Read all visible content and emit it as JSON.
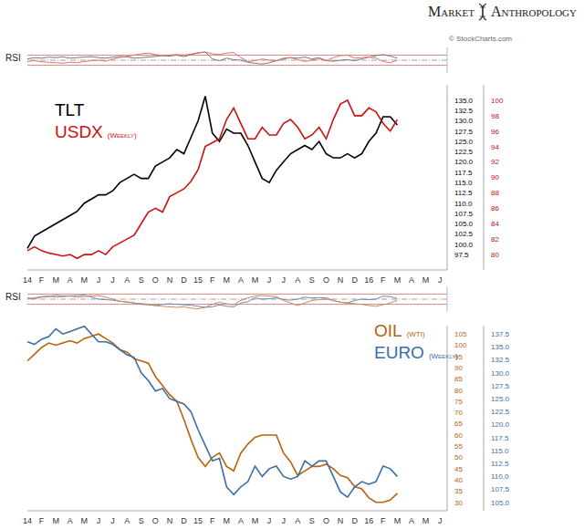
{
  "header": {
    "brand": [
      "Market",
      "Anthropology"
    ],
    "credit": "© StockCharts.com"
  },
  "chart_data": [
    {
      "type": "line",
      "title": "RSI",
      "tick_labels": false,
      "ylim": [
        0,
        100
      ],
      "levels": [
        30,
        50,
        70
      ],
      "series": [
        {
          "color": "#777777",
          "values": [
            55,
            60,
            58,
            62,
            60,
            63,
            58,
            60,
            62,
            64,
            60,
            58,
            62,
            65,
            63,
            58,
            60,
            62,
            65,
            68,
            66,
            70,
            64,
            72,
            78,
            82,
            55,
            48,
            58,
            52,
            50,
            42,
            38,
            35,
            40,
            48,
            55,
            60,
            58,
            62,
            55,
            60,
            48,
            46,
            50,
            52,
            48,
            55,
            62,
            68,
            72,
            66,
            58,
            null,
            null,
            null,
            null,
            null,
            null,
            null
          ]
        },
        {
          "color": "#e07070",
          "values": [
            45,
            48,
            44,
            42,
            40,
            38,
            42,
            40,
            45,
            48,
            50,
            46,
            55,
            60,
            65,
            70,
            75,
            78,
            72,
            68,
            70,
            72,
            70,
            74,
            80,
            82,
            75,
            72,
            78,
            80,
            60,
            45,
            48,
            55,
            50,
            48,
            58,
            60,
            52,
            45,
            50,
            55,
            48,
            60,
            68,
            70,
            58,
            60,
            62,
            58,
            45,
            40,
            50,
            null,
            null,
            null,
            null,
            null,
            null,
            null
          ]
        }
      ]
    },
    {
      "type": "line",
      "categories": [
        "14",
        null,
        "F",
        null,
        "M",
        null,
        "A",
        null,
        "M",
        null,
        "J",
        null,
        "J",
        null,
        "A",
        null,
        "S",
        null,
        "O",
        null,
        "N",
        null,
        "D",
        null,
        "15",
        null,
        "F",
        null,
        "M",
        null,
        "A",
        null,
        "M",
        null,
        "J",
        null,
        "J",
        null,
        "A",
        null,
        "S",
        null,
        "O",
        null,
        "N",
        null,
        "D",
        null,
        "16",
        null,
        "F",
        null,
        "M",
        null,
        "A",
        null,
        "M",
        null,
        "J",
        null
      ],
      "ylim": [
        93.75,
        138.75
      ],
      "yticks": [
        97.5,
        {
          "value": 100,
          "label": "100.0"
        },
        102.5,
        {
          "value": 105,
          "label": "105.0"
        },
        107.5,
        {
          "value": 110,
          "label": "110.0"
        },
        112.5,
        {
          "value": 115,
          "label": "115.0"
        },
        117.5,
        {
          "value": 120,
          "label": "120.0"
        },
        122.5,
        {
          "value": 125,
          "label": "125.0"
        },
        127.5,
        {
          "value": 130,
          "label": "130.0"
        },
        132.5,
        {
          "value": 135,
          "label": "135.0"
        }
      ],
      "y2lim": [
        78,
        102
      ],
      "y2ticks": [
        80,
        82,
        84,
        86,
        88,
        90,
        92,
        94,
        96,
        98,
        100
      ],
      "series": [
        {
          "name": "TLT",
          "color": "#000000",
          "values": [
            99,
            102,
            103,
            104,
            105,
            106,
            107,
            108,
            110,
            111,
            112,
            112,
            113,
            115,
            116,
            117,
            116,
            116,
            119,
            120,
            121,
            123,
            122,
            126,
            130,
            136,
            127,
            125,
            128,
            127,
            127,
            124,
            120,
            116,
            115,
            118,
            120,
            122,
            123,
            124,
            123,
            125,
            122,
            121,
            121,
            122,
            121,
            122,
            125,
            127,
            131,
            131,
            129,
            null,
            null,
            null,
            null,
            null,
            null,
            null
          ]
        },
        {
          "name": "USDX",
          "qualifier": "(Weekly)",
          "color": "#cc1111",
          "axis": "y2",
          "values": [
            80.5,
            81,
            80.5,
            80.2,
            80,
            79.8,
            80,
            79.5,
            80,
            80,
            80.5,
            80,
            81,
            81.5,
            82,
            82.5,
            84,
            85.5,
            86,
            85.5,
            87.5,
            88,
            88.5,
            89.5,
            91,
            94,
            94.5,
            95,
            97.5,
            99,
            97,
            95,
            95,
            96.5,
            95.5,
            95.5,
            97,
            97.5,
            96.5,
            95,
            95.5,
            96.5,
            95,
            97.5,
            99.5,
            100,
            98,
            98,
            99,
            98.5,
            97,
            96,
            97.5,
            null,
            null,
            null,
            null,
            null,
            null,
            null
          ]
        }
      ]
    },
    {
      "type": "line",
      "title": "RSI",
      "tick_labels": false,
      "ylim": [
        0,
        100
      ],
      "levels": [
        30,
        50,
        70
      ],
      "series": [
        {
          "color": "#6a88bb",
          "values": [
            55,
            52,
            58,
            60,
            65,
            62,
            63,
            64,
            66,
            58,
            50,
            48,
            46,
            42,
            38,
            35,
            30,
            28,
            25,
            30,
            32,
            30,
            28,
            26,
            22,
            18,
            20,
            28,
            22,
            20,
            35,
            40,
            55,
            50,
            52,
            55,
            48,
            46,
            50,
            58,
            55,
            56,
            55,
            45,
            38,
            35,
            45,
            50,
            48,
            50,
            62,
            60,
            52,
            null,
            null,
            null,
            null,
            null,
            null,
            null
          ]
        },
        {
          "color": "#c98a50",
          "values": [
            50,
            55,
            60,
            62,
            58,
            60,
            62,
            58,
            60,
            62,
            64,
            58,
            50,
            42,
            40,
            35,
            33,
            30,
            25,
            22,
            20,
            18,
            20,
            15,
            12,
            18,
            30,
            38,
            32,
            28,
            45,
            55,
            62,
            64,
            62,
            60,
            45,
            35,
            25,
            35,
            45,
            48,
            50,
            45,
            38,
            35,
            32,
            30,
            25,
            22,
            28,
            35,
            45,
            null,
            null,
            null,
            null,
            null,
            null,
            null
          ]
        }
      ]
    },
    {
      "type": "line",
      "categories": [
        "14",
        null,
        "F",
        null,
        "M",
        null,
        "A",
        null,
        "M",
        null,
        "J",
        null,
        "J",
        null,
        "A",
        null,
        "S",
        null,
        "O",
        null,
        "N",
        null,
        "D",
        null,
        "15",
        null,
        "F",
        null,
        "M",
        null,
        "A",
        null,
        "M",
        null,
        "J",
        null,
        "J",
        null,
        "A",
        null,
        "S",
        null,
        "O",
        null,
        "N",
        null,
        "D",
        null,
        "16",
        null,
        "F",
        null,
        "M",
        null,
        "A",
        null,
        "M",
        null,
        "J",
        null
      ],
      "ylim": [
        26.25,
        108.75
      ],
      "yticks": [
        30,
        35,
        40,
        45,
        50,
        55,
        60,
        65,
        70,
        75,
        80,
        85,
        90,
        95,
        100,
        105
      ],
      "y2lim": [
        103.375,
        139.125
      ],
      "y2ticks": [
        {
          "value": 105,
          "label": "105.0"
        },
        107.5,
        {
          "value": 110,
          "label": "110.0"
        },
        112.5,
        {
          "value": 115,
          "label": "115.0"
        },
        117.5,
        {
          "value": 120,
          "label": "120.0"
        },
        122.5,
        {
          "value": 125,
          "label": "125.0"
        },
        127.5,
        {
          "value": 130,
          "label": "130.0"
        },
        132.5,
        {
          "value": 135,
          "label": "135.0"
        },
        137.5
      ],
      "series": [
        {
          "name": "OIL",
          "qualifier": "(WTI)",
          "color": "#b8620e",
          "values": [
            93,
            96,
            99,
            101,
            100,
            101,
            102,
            101,
            103,
            104,
            105,
            103,
            101,
            98,
            97,
            94,
            93,
            92,
            86,
            82,
            78,
            75,
            67,
            58,
            50,
            46,
            50,
            52,
            46,
            44,
            52,
            56,
            59,
            60,
            60,
            60,
            52,
            48,
            42,
            44,
            46,
            46,
            47,
            45,
            42,
            41,
            37,
            36,
            32,
            30,
            30,
            31,
            34,
            null,
            null,
            null,
            null,
            null,
            null,
            null
          ]
        },
        {
          "name": "EURO",
          "qualifier": "(Weekly)",
          "color": "#3a6ea8",
          "axis": "y2",
          "values": [
            136,
            135.5,
            136.5,
            137,
            138.5,
            137.5,
            138,
            138.5,
            139,
            137.5,
            136,
            136,
            135.5,
            134.5,
            133.5,
            133,
            130,
            128.5,
            126.5,
            127,
            125,
            124.5,
            124,
            122.5,
            119,
            116,
            113,
            113.5,
            108,
            106.5,
            108,
            109,
            112,
            110,
            111.5,
            112,
            110,
            109.5,
            110,
            113,
            112,
            113,
            113,
            110,
            107,
            106,
            108,
            109,
            108.5,
            109,
            112,
            111.5,
            110,
            null,
            null,
            null,
            null,
            null,
            null,
            null
          ]
        }
      ]
    }
  ]
}
